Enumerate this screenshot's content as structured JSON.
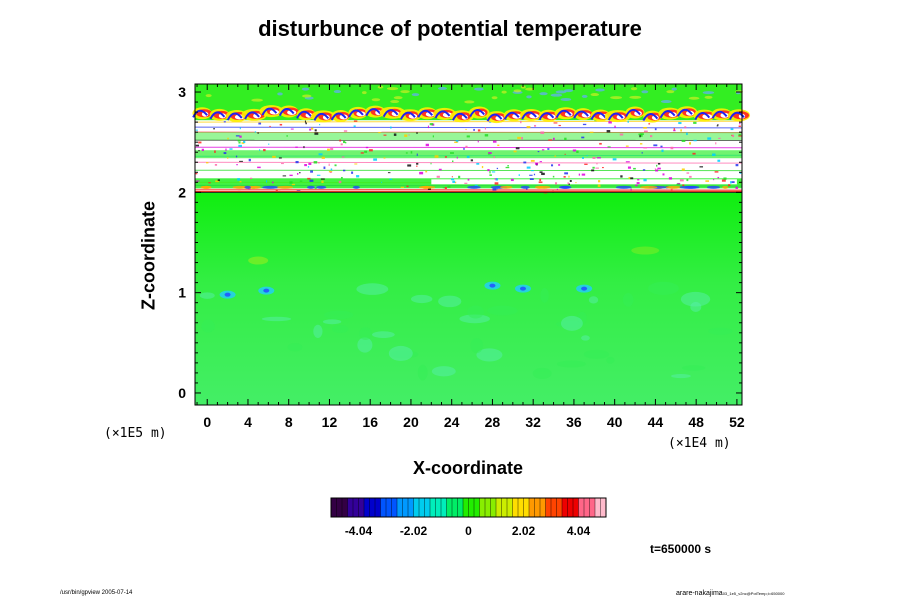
{
  "chart_data": {
    "type": "heatmap",
    "title": "disturbunce of potential temperature",
    "xlabel": "X-coordinate",
    "ylabel": "Z-coordinate",
    "x_unit": "(×1E4 m)",
    "y_unit": "(×1E5 m)",
    "xlim": [
      -1.2,
      52.5
    ],
    "ylim": [
      -0.12,
      3.08
    ],
    "x_ticks": [
      0,
      4,
      8,
      12,
      16,
      20,
      24,
      28,
      32,
      36,
      40,
      44,
      48,
      52
    ],
    "y_ticks": [
      0,
      1,
      2,
      3
    ],
    "colorbar": {
      "ticks": [
        -4.04,
        -2.02,
        0,
        2.02,
        4.04
      ],
      "tick_labels": [
        "-4.04",
        "-2.02",
        "0",
        "2.02",
        "4.04"
      ],
      "range": [
        -5.05,
        5.05
      ]
    },
    "regions": [
      {
        "z_range": [
          -0.12,
          1.15
        ],
        "value": -0.6,
        "note": "uniform light green, weak cyan patches"
      },
      {
        "z_range": [
          1.15,
          2.0
        ],
        "value": 0.3,
        "note": "bright green"
      },
      {
        "z_range": [
          2.0,
          2.72
        ],
        "value": null,
        "note": "white gaps with multicolor streaks (saturated)"
      },
      {
        "z_range": [
          2.72,
          3.08
        ],
        "value": 1.5,
        "note": "green with yellow/red/blue wave crests"
      }
    ],
    "grid": false,
    "legend": "colorbar-bottom"
  },
  "annotations": {
    "time": "t=650000 s",
    "footer_left": "/usr/bin/gpview 2005-07-14",
    "footer_right": "arare-nakajima",
    "footer_right_small": "03_1e5_v2nc@PotTemp,t=650000"
  },
  "colors": {
    "bg_low": "#44ee66",
    "bg_mid": "#11ee11",
    "wave_high": "#ff3322",
    "wave_low": "#2222ee"
  }
}
